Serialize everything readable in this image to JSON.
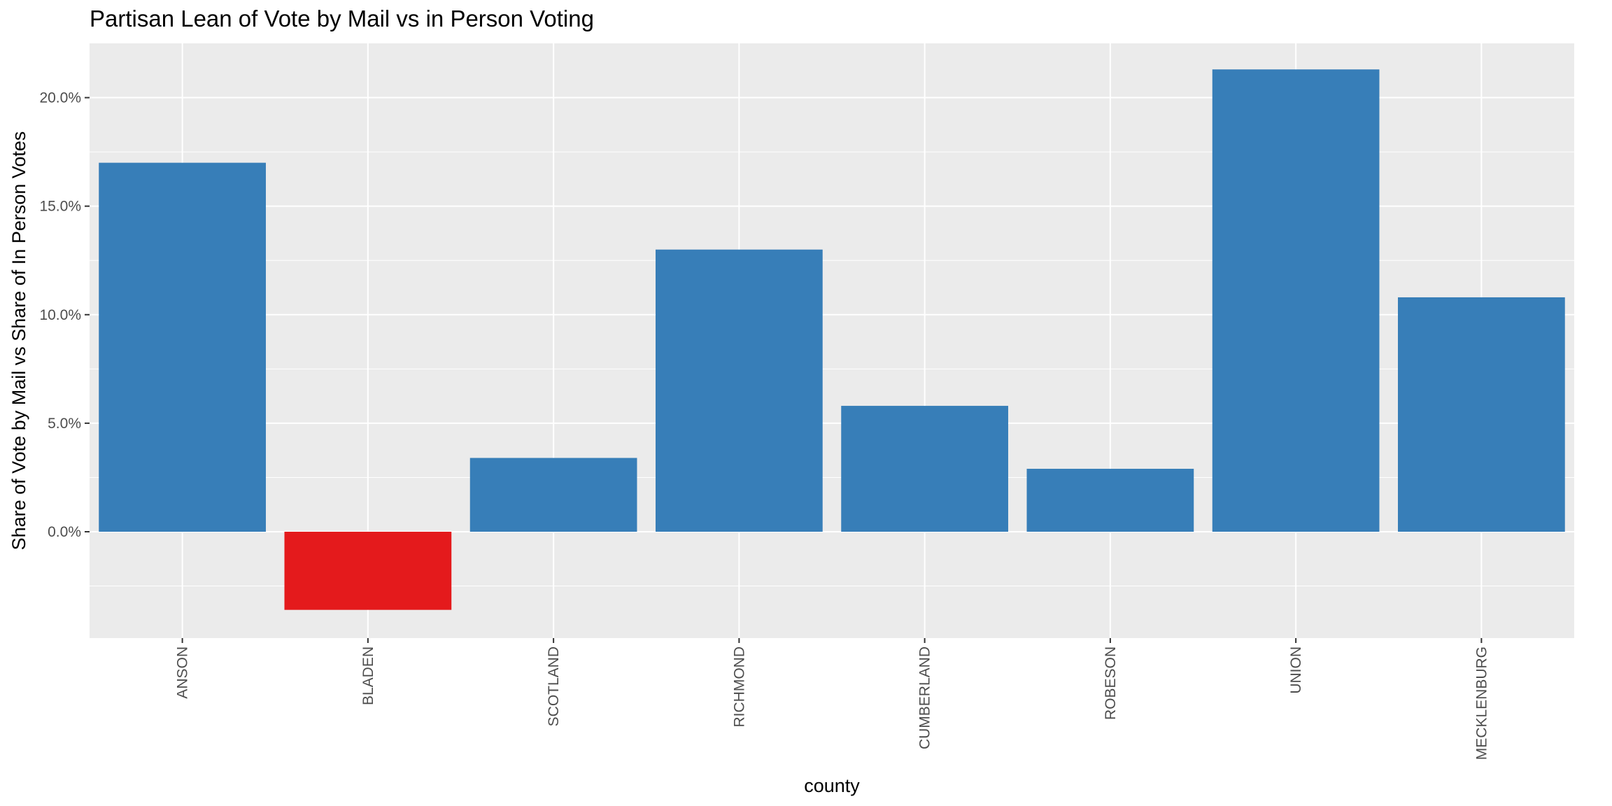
{
  "chart_data": {
    "type": "bar",
    "title": "Partisan Lean of Vote by Mail vs in Person Voting",
    "xlabel": "county",
    "ylabel": "Share of Vote by Mail vs Share of In Person Votes",
    "categories": [
      "ANSON",
      "BLADEN",
      "SCOTLAND",
      "RICHMOND",
      "CUMBERLAND",
      "ROBESON",
      "UNION",
      "MECKLENBURG"
    ],
    "values": [
      0.17,
      -0.036,
      0.034,
      0.13,
      0.058,
      0.029,
      0.213,
      0.108
    ],
    "colors": [
      "#377eb8",
      "#e41a1c",
      "#377eb8",
      "#377eb8",
      "#377eb8",
      "#377eb8",
      "#377eb8",
      "#377eb8"
    ],
    "y_ticks": [
      0.0,
      0.05,
      0.1,
      0.15,
      0.2
    ],
    "y_tick_labels": [
      "0.0%",
      "5.0%",
      "10.0%",
      "15.0%",
      "20.0%"
    ],
    "ylim": [
      -0.049,
      0.225
    ],
    "grid": true,
    "panel_background": "#ebebeb",
    "gridline_color": "#ffffff"
  }
}
